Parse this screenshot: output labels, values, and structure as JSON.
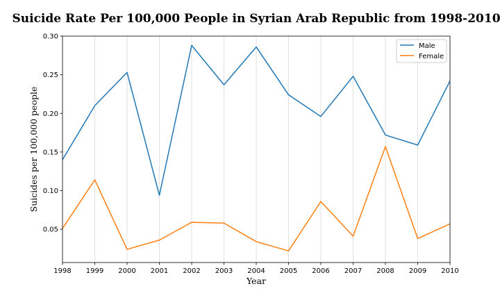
{
  "chart_data": {
    "type": "line",
    "title": "Suicide Rate Per 100,000 People in Syrian Arab Republic from 1998-2010",
    "xlabel": "Year",
    "ylabel": "Suicides per 100,000 people",
    "x": [
      1998,
      1999,
      2000,
      2001,
      2002,
      2003,
      2004,
      2005,
      2006,
      2007,
      2008,
      2009,
      2010
    ],
    "x_tick_labels": [
      "1998",
      "1999",
      "2000",
      "2001",
      "2002",
      "2003",
      "2004",
      "2005",
      "2006",
      "2007",
      "2008",
      "2009",
      "2010"
    ],
    "y_ticks": [
      0.05,
      0.1,
      0.15,
      0.2,
      0.25,
      0.3
    ],
    "y_tick_labels": [
      "0.05",
      "0.10",
      "0.15",
      "0.20",
      "0.25",
      "0.30"
    ],
    "xlim": [
      1998,
      2010
    ],
    "ylim": [
      0.007,
      0.3
    ],
    "grid": "vertical",
    "legend_position": "top-right",
    "series": [
      {
        "name": "Male",
        "color": "#1f77b4",
        "values": [
          0.14,
          0.21,
          0.253,
          0.094,
          0.288,
          0.237,
          0.286,
          0.224,
          0.196,
          0.248,
          0.172,
          0.159,
          0.242
        ]
      },
      {
        "name": "Female",
        "color": "#ff7f0e",
        "values": [
          0.051,
          0.114,
          0.024,
          0.036,
          0.059,
          0.058,
          0.034,
          0.022,
          0.086,
          0.041,
          0.157,
          0.038,
          0.057
        ]
      }
    ]
  }
}
